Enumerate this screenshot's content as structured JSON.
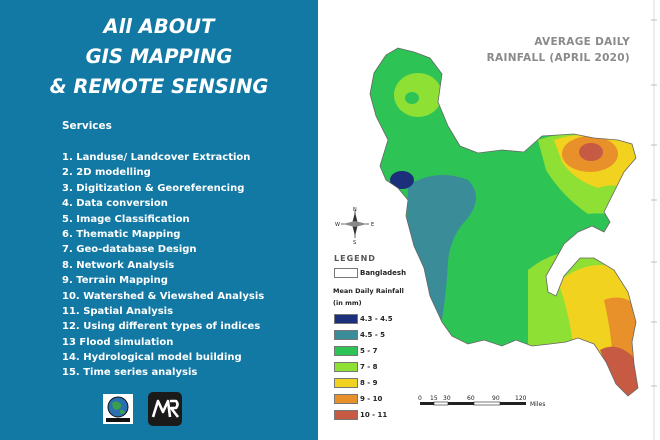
{
  "poster": {
    "title_lines": [
      "All ABOUT",
      "GIS MAPPING",
      "& REMOTE SENSING"
    ],
    "services_heading": "Services",
    "services": [
      "1. Landuse/ Landcover Extraction",
      "2. 2D modelling",
      "3. Digitization & Georeferencing",
      "4. Data conversion",
      "5. Image Classification",
      "6. Thematic Mapping",
      "7. Geo-database Design",
      "8. Network Analysis",
      "9. Terrain Mapping",
      "10. Watershed & Viewshed Analysis",
      "11. Spatial Analysis",
      "12. Using different types of indices",
      "13 Flood simulation",
      "14. Hydrological model building",
      "15. Time series analysis"
    ],
    "logo_left_icon": "globe-logo-icon",
    "logo_right_text": "MR",
    "colors": {
      "panel": "#1279a4",
      "text": "#ffffff"
    }
  },
  "map": {
    "title_lines": [
      "AVERAGE DAILY",
      "RAINFALL (APRIL 2020)"
    ],
    "compass": {
      "n": "N",
      "s": "S",
      "e": "E",
      "w": "W"
    },
    "legend": {
      "title": "LEGEND",
      "boundary_label": "Bangladesh",
      "variable_title": "Mean Daily Rainfall",
      "unit": "(in mm)",
      "classes": [
        {
          "label": "4.3 - 4.5",
          "color": "#1b2f7a"
        },
        {
          "label": "4.5 - 5",
          "color": "#3a8c98"
        },
        {
          "label": "5 - 7",
          "color": "#2ec455"
        },
        {
          "label": "7 - 8",
          "color": "#8fe034"
        },
        {
          "label": "8 - 9",
          "color": "#f1d21e"
        },
        {
          "label": "9 - 10",
          "color": "#e8902a"
        },
        {
          "label": "10 - 11",
          "color": "#c75a42"
        }
      ]
    },
    "scale_bar": {
      "ticks": [
        "0",
        "15",
        "30",
        "60",
        "90",
        "120"
      ],
      "unit": "Miles"
    }
  }
}
